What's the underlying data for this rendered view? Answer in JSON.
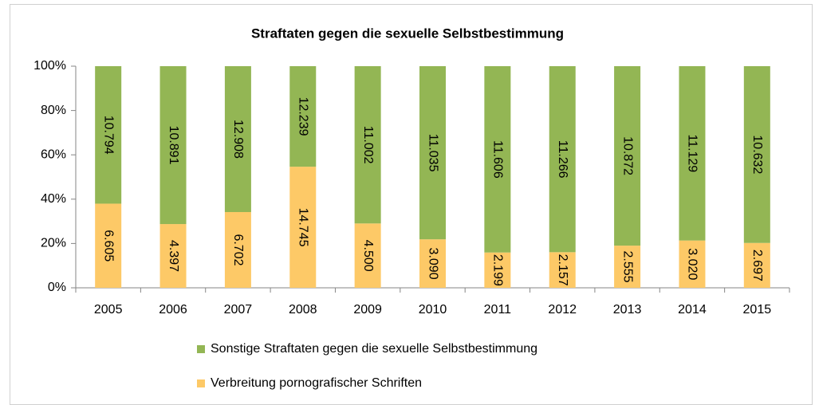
{
  "chart_data": {
    "type": "bar",
    "stacking": "percent",
    "title": "Straftaten gegen die sexuelle Selbstbestimmung",
    "categories": [
      "2005",
      "2006",
      "2007",
      "2008",
      "2009",
      "2010",
      "2011",
      "2012",
      "2013",
      "2014",
      "2015"
    ],
    "series": [
      {
        "name": "Sonstige Straftaten gegen die sexuelle Selbstbestimmung",
        "color": "#93b654",
        "values": [
          10794,
          10891,
          12908,
          12239,
          11002,
          11035,
          11606,
          11266,
          10872,
          11129,
          10632
        ],
        "value_labels": [
          "10.794",
          "10.891",
          "12.908",
          "12.239",
          "11.002",
          "11.035",
          "11.606",
          "11.266",
          "10.872",
          "11.129",
          "10.632"
        ]
      },
      {
        "name": "Verbreitung pornografischer Schriften",
        "color": "#fdc967",
        "values": [
          6605,
          4397,
          6702,
          14745,
          4500,
          3090,
          2199,
          2157,
          2555,
          3020,
          2697
        ],
        "value_labels": [
          "6.605",
          "4.397",
          "6.702",
          "14.745",
          "4.500",
          "3.090",
          "2.199",
          "2.157",
          "2.555",
          "3.020",
          "2.697"
        ]
      }
    ],
    "ylim": [
      0,
      100
    ],
    "yticks": [
      {
        "value": 0,
        "label": "0%"
      },
      {
        "value": 20,
        "label": "20%"
      },
      {
        "value": 40,
        "label": "40%"
      },
      {
        "value": 60,
        "label": "60%"
      },
      {
        "value": 80,
        "label": "80%"
      },
      {
        "value": 100,
        "label": "100%"
      }
    ],
    "grid": false,
    "legend": "bottom"
  }
}
